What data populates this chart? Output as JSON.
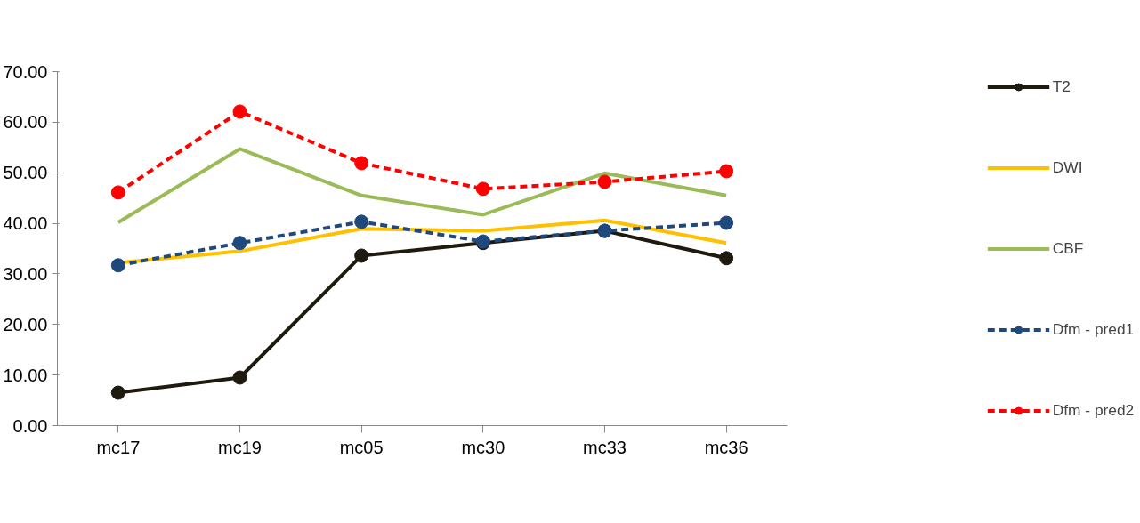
{
  "chart_data": {
    "type": "line",
    "categories": [
      "mc17",
      "mc19",
      "mc05",
      "mc30",
      "mc33",
      "mc36"
    ],
    "series": [
      {
        "name": "T2",
        "color": "#1f1a0f",
        "values": [
          6.5,
          9.5,
          33.6,
          36.1,
          38.5,
          33.1
        ],
        "marker": "circle",
        "line_style": "solid"
      },
      {
        "name": "DWI",
        "color": "#ffc000",
        "values": [
          32.2,
          34.5,
          38.9,
          38.5,
          40.6,
          36.1
        ],
        "marker": "none",
        "line_style": "solid"
      },
      {
        "name": "CBF",
        "color": "#9bbb59",
        "values": [
          40.2,
          54.7,
          45.5,
          41.7,
          49.9,
          45.5
        ],
        "marker": "none",
        "line_style": "solid"
      },
      {
        "name": "Dfm - pred1",
        "color": "#1f497d",
        "values": [
          31.7,
          36.1,
          40.3,
          36.4,
          38.5,
          40.1
        ],
        "marker": "circle",
        "line_style": "dashed"
      },
      {
        "name": "Dfm - pred2",
        "color": "#ff0000",
        "values": [
          46.1,
          62.1,
          51.9,
          46.8,
          48.2,
          50.3
        ],
        "marker": "circle",
        "line_style": "dashed"
      }
    ],
    "ylim": [
      0,
      70
    ],
    "yticks": [
      {
        "value": 0,
        "label": "0.00"
      },
      {
        "value": 10,
        "label": "10.00"
      },
      {
        "value": 20,
        "label": "20.00"
      },
      {
        "value": 30,
        "label": "30.00"
      },
      {
        "value": 40,
        "label": "40.00"
      },
      {
        "value": 50,
        "label": "50.00"
      },
      {
        "value": 60,
        "label": "60.00"
      },
      {
        "value": 70,
        "label": "70.00"
      }
    ],
    "grid": false,
    "legend": "right"
  }
}
